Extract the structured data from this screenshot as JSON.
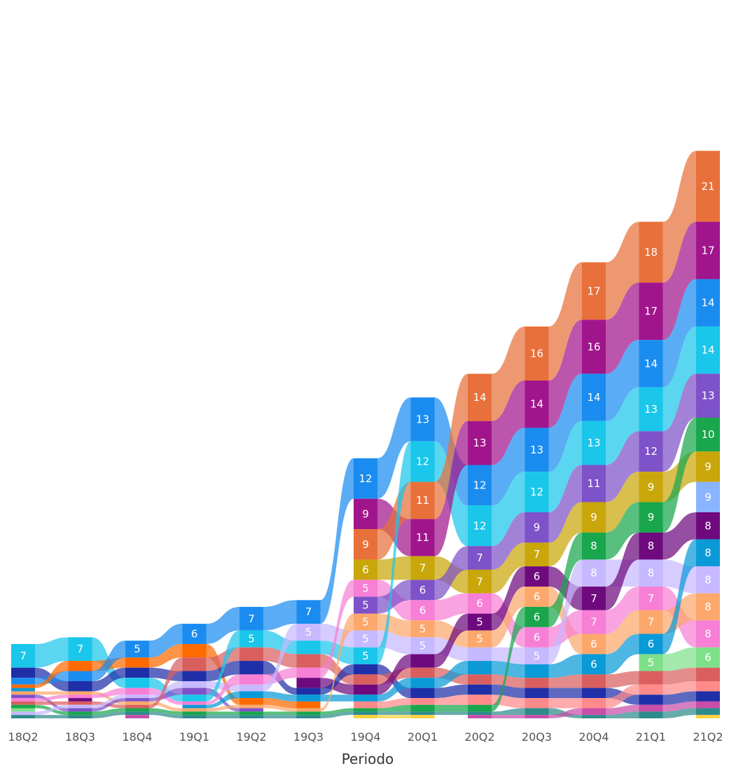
{
  "chart_data": {
    "type": "ribbon",
    "xlabel": "Periodo",
    "categories": [
      "18Q2",
      "18Q3",
      "18Q4",
      "19Q1",
      "19Q2",
      "19Q3",
      "19Q4",
      "20Q1",
      "20Q2",
      "20Q3",
      "20Q4",
      "21Q1",
      "21Q2"
    ],
    "palette": [
      "#e8703a",
      "#a1158c",
      "#1a8cf0",
      "#1ac6ea",
      "#7e52c8",
      "#19a64c",
      "#c9a60a",
      "#6e0a7e",
      "#0a9ad8",
      "#c6b9ff",
      "#fca86c",
      "#f77fd5",
      "#7fe08a",
      "#d95f5f",
      "#1f2fa8",
      "#ff8a8a",
      "#c84ea8",
      "#2e8b8b",
      "#ffd23f",
      "#ff6a00",
      "#8ab4ff",
      "#e0567a",
      "#9ad0f5",
      "#6ccf6c"
    ],
    "columns": [
      {
        "period": "18Q2",
        "top_value": 7,
        "segments": [
          [
            "#1ac6ea",
            7
          ],
          [
            "#1f2fa8",
            3
          ],
          [
            "#1a8cf0",
            2
          ],
          [
            "#ff6a00",
            1
          ],
          [
            "#0a9ad8",
            1
          ],
          [
            "#fca86c",
            1
          ],
          [
            "#7e52c8",
            1
          ],
          [
            "#f77fd5",
            1
          ],
          [
            "#d95f5f",
            1
          ],
          [
            "#19a64c",
            1
          ],
          [
            "#7fe08a",
            1
          ],
          [
            "#c6b9ff",
            1
          ],
          [
            "#2e8b8b",
            1
          ]
        ]
      },
      {
        "period": "18Q3",
        "top_value": 7,
        "segments": [
          [
            "#1ac6ea",
            7
          ],
          [
            "#ff6a00",
            3
          ],
          [
            "#1a8cf0",
            3
          ],
          [
            "#1f2fa8",
            3
          ],
          [
            "#fca86c",
            1
          ],
          [
            "#f77fd5",
            1
          ],
          [
            "#6e0a7e",
            1
          ],
          [
            "#d95f5f",
            1
          ],
          [
            "#c6b9ff",
            1
          ],
          [
            "#7e52c8",
            1
          ],
          [
            "#19a64c",
            1
          ],
          [
            "#2e8b8b",
            1
          ]
        ]
      },
      {
        "period": "18Q4",
        "top_value": 5,
        "segments": [
          [
            "#1a8cf0",
            5
          ],
          [
            "#ff6a00",
            3
          ],
          [
            "#1f2fa8",
            3
          ],
          [
            "#1ac6ea",
            3
          ],
          [
            "#f77fd5",
            2
          ],
          [
            "#c6b9ff",
            1
          ],
          [
            "#7e52c8",
            1
          ],
          [
            "#fca86c",
            1
          ],
          [
            "#d95f5f",
            1
          ],
          [
            "#19a64c",
            1
          ],
          [
            "#2e8b8b",
            1
          ],
          [
            "#c84ea8",
            1
          ]
        ]
      },
      {
        "period": "19Q1",
        "top_value": 6,
        "segments": [
          [
            "#1a8cf0",
            6
          ],
          [
            "#ff6a00",
            4
          ],
          [
            "#d95f5f",
            4
          ],
          [
            "#1f2fa8",
            3
          ],
          [
            "#c6b9ff",
            2
          ],
          [
            "#7e52c8",
            2
          ],
          [
            "#1ac6ea",
            2
          ],
          [
            "#f77fd5",
            1
          ],
          [
            "#0a9ad8",
            1
          ],
          [
            "#fca86c",
            1
          ],
          [
            "#19a64c",
            1
          ],
          [
            "#2e8b8b",
            1
          ]
        ]
      },
      {
        "period": "19Q2",
        "top_value": 7,
        "segments": [
          [
            "#1a8cf0",
            7
          ],
          [
            "#1ac6ea",
            5
          ],
          [
            "#d95f5f",
            4
          ],
          [
            "#1f2fa8",
            4
          ],
          [
            "#f77fd5",
            3
          ],
          [
            "#c6b9ff",
            2
          ],
          [
            "#0a9ad8",
            2
          ],
          [
            "#ff6a00",
            2
          ],
          [
            "#fca86c",
            1
          ],
          [
            "#7e52c8",
            1
          ],
          [
            "#19a64c",
            1
          ],
          [
            "#2e8b8b",
            1
          ]
        ]
      },
      {
        "period": "19Q3",
        "top_value": 7,
        "segments": [
          [
            "#1a8cf0",
            7
          ],
          [
            "#c6b9ff",
            5
          ],
          [
            "#1ac6ea",
            4
          ],
          [
            "#d95f5f",
            4
          ],
          [
            "#f77fd5",
            3
          ],
          [
            "#6e0a7e",
            3
          ],
          [
            "#1f2fa8",
            2
          ],
          [
            "#0a9ad8",
            2
          ],
          [
            "#ff6a00",
            2
          ],
          [
            "#fca86c",
            1
          ],
          [
            "#19a64c",
            1
          ],
          [
            "#2e8b8b",
            1
          ]
        ]
      },
      {
        "period": "19Q4",
        "top_value": 12,
        "segments": [
          [
            "#1a8cf0",
            12
          ],
          [
            "#a1158c",
            9
          ],
          [
            "#e8703a",
            9
          ],
          [
            "#c9a60a",
            6
          ],
          [
            "#f77fd5",
            5
          ],
          [
            "#7e52c8",
            5
          ],
          [
            "#fca86c",
            5
          ],
          [
            "#c6b9ff",
            5
          ],
          [
            "#1ac6ea",
            5
          ],
          [
            "#1f2fa8",
            3
          ],
          [
            "#d95f5f",
            3
          ],
          [
            "#6e0a7e",
            3
          ],
          [
            "#0a9ad8",
            2
          ],
          [
            "#ff8a8a",
            2
          ],
          [
            "#19a64c",
            1
          ],
          [
            "#2e8b8b",
            1
          ],
          [
            "#ffd23f",
            1
          ]
        ]
      },
      {
        "period": "20Q1",
        "top_value": 13,
        "segments": [
          [
            "#1a8cf0",
            13
          ],
          [
            "#1ac6ea",
            12
          ],
          [
            "#e8703a",
            11
          ],
          [
            "#a1158c",
            11
          ],
          [
            "#c9a60a",
            7
          ],
          [
            "#7e52c8",
            6
          ],
          [
            "#f77fd5",
            6
          ],
          [
            "#fca86c",
            5
          ],
          [
            "#c6b9ff",
            5
          ],
          [
            "#6e0a7e",
            4
          ],
          [
            "#d95f5f",
            3
          ],
          [
            "#0a9ad8",
            3
          ],
          [
            "#1f2fa8",
            3
          ],
          [
            "#ff8a8a",
            2
          ],
          [
            "#19a64c",
            2
          ],
          [
            "#2e8b8b",
            1
          ],
          [
            "#ffd23f",
            1
          ]
        ]
      },
      {
        "period": "20Q2",
        "top_value": 14,
        "segments": [
          [
            "#e8703a",
            14
          ],
          [
            "#a1158c",
            13
          ],
          [
            "#1a8cf0",
            12
          ],
          [
            "#1ac6ea",
            12
          ],
          [
            "#7e52c8",
            7
          ],
          [
            "#c9a60a",
            7
          ],
          [
            "#f77fd5",
            6
          ],
          [
            "#6e0a7e",
            5
          ],
          [
            "#fca86c",
            5
          ],
          [
            "#c6b9ff",
            4
          ],
          [
            "#0a9ad8",
            4
          ],
          [
            "#d95f5f",
            3
          ],
          [
            "#1f2fa8",
            3
          ],
          [
            "#ff8a8a",
            3
          ],
          [
            "#19a64c",
            2
          ],
          [
            "#2e8b8b",
            1
          ],
          [
            "#c84ea8",
            1
          ]
        ]
      },
      {
        "period": "20Q3",
        "top_value": 16,
        "segments": [
          [
            "#e8703a",
            16
          ],
          [
            "#a1158c",
            14
          ],
          [
            "#1a8cf0",
            13
          ],
          [
            "#1ac6ea",
            12
          ],
          [
            "#7e52c8",
            9
          ],
          [
            "#c9a60a",
            7
          ],
          [
            "#6e0a7e",
            6
          ],
          [
            "#fca86c",
            6
          ],
          [
            "#19a64c",
            6
          ],
          [
            "#f77fd5",
            6
          ],
          [
            "#c6b9ff",
            5
          ],
          [
            "#0a9ad8",
            4
          ],
          [
            "#d95f5f",
            3
          ],
          [
            "#1f2fa8",
            3
          ],
          [
            "#ff8a8a",
            3
          ],
          [
            "#2e8b8b",
            2
          ],
          [
            "#c84ea8",
            1
          ]
        ]
      },
      {
        "period": "20Q4",
        "top_value": 17,
        "segments": [
          [
            "#e8703a",
            17
          ],
          [
            "#a1158c",
            16
          ],
          [
            "#1a8cf0",
            14
          ],
          [
            "#1ac6ea",
            13
          ],
          [
            "#7e52c8",
            11
          ],
          [
            "#c9a60a",
            9
          ],
          [
            "#19a64c",
            8
          ],
          [
            "#c6b9ff",
            8
          ],
          [
            "#6e0a7e",
            7
          ],
          [
            "#f77fd5",
            7
          ],
          [
            "#fca86c",
            6
          ],
          [
            "#0a9ad8",
            6
          ],
          [
            "#d95f5f",
            4
          ],
          [
            "#1f2fa8",
            3
          ],
          [
            "#ff8a8a",
            3
          ],
          [
            "#c84ea8",
            2
          ],
          [
            "#2e8b8b",
            1
          ]
        ]
      },
      {
        "period": "21Q1",
        "top_value": 18,
        "segments": [
          [
            "#e8703a",
            18
          ],
          [
            "#a1158c",
            17
          ],
          [
            "#1a8cf0",
            14
          ],
          [
            "#1ac6ea",
            13
          ],
          [
            "#7e52c8",
            12
          ],
          [
            "#c9a60a",
            9
          ],
          [
            "#19a64c",
            9
          ],
          [
            "#6e0a7e",
            8
          ],
          [
            "#c6b9ff",
            8
          ],
          [
            "#f77fd5",
            7
          ],
          [
            "#fca86c",
            7
          ],
          [
            "#0a9ad8",
            6
          ],
          [
            "#7fe08a",
            5
          ],
          [
            "#d95f5f",
            4
          ],
          [
            "#ff8a8a",
            3
          ],
          [
            "#1f2fa8",
            3
          ],
          [
            "#c84ea8",
            2
          ],
          [
            "#2e8b8b",
            2
          ]
        ]
      },
      {
        "period": "21Q2",
        "top_value": 21,
        "segments": [
          [
            "#e8703a",
            21
          ],
          [
            "#a1158c",
            17
          ],
          [
            "#1a8cf0",
            14
          ],
          [
            "#1ac6ea",
            14
          ],
          [
            "#7e52c8",
            13
          ],
          [
            "#19a64c",
            10
          ],
          [
            "#c9a60a",
            9
          ],
          [
            "#8ab4ff",
            9
          ],
          [
            "#6e0a7e",
            8
          ],
          [
            "#0a9ad8",
            8
          ],
          [
            "#c6b9ff",
            8
          ],
          [
            "#fca86c",
            8
          ],
          [
            "#f77fd5",
            8
          ],
          [
            "#7fe08a",
            6
          ],
          [
            "#d95f5f",
            4
          ],
          [
            "#ff8a8a",
            3
          ],
          [
            "#1f2fa8",
            3
          ],
          [
            "#c84ea8",
            2
          ],
          [
            "#2e8b8b",
            2
          ],
          [
            "#ffd23f",
            1
          ]
        ]
      }
    ]
  }
}
